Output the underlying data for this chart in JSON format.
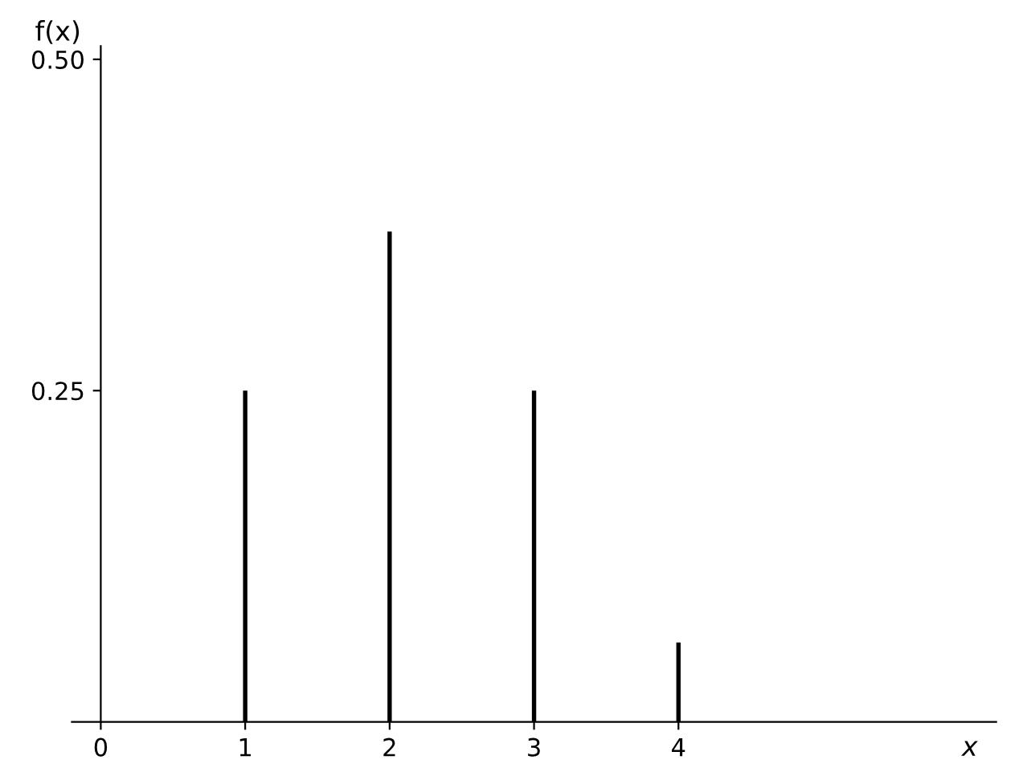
{
  "chart_data": {
    "type": "bar",
    "xlabel": "x",
    "ylabel": "f(x)",
    "x": [
      1,
      2,
      3,
      4
    ],
    "values": [
      0.25,
      0.37,
      0.25,
      0.06
    ],
    "color": "#000000",
    "xlim": [
      -0.2,
      6.2
    ],
    "xticks": [
      0,
      1,
      2,
      3,
      4
    ],
    "ylim": [
      0,
      0.51
    ],
    "yticks": [
      {
        "value": 0.25,
        "label": "0.25"
      },
      {
        "value": 0.5,
        "label": "0.50"
      }
    ],
    "grid": false,
    "legend": false
  }
}
